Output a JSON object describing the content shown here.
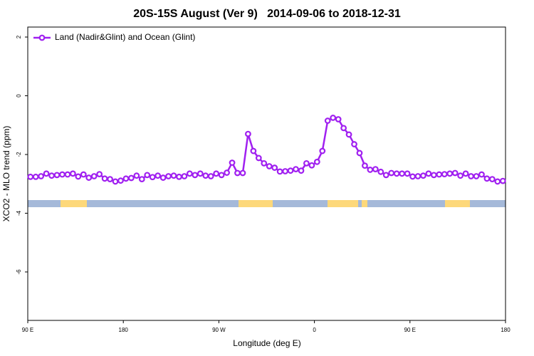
{
  "chart_data": {
    "type": "line",
    "title": "20S-15S August (Ver 9)   2014-09-06 to 2018-12-31",
    "x_label": "Longitude (deg E)",
    "y_label": "XCO2 - MLO trend (ppm)",
    "xlim": [
      90,
      540
    ],
    "ylim": [
      -7.65,
      2.34
    ],
    "xticks": [
      {
        "value": 90,
        "label": "90 E"
      },
      {
        "value": 180,
        "label": "180"
      },
      {
        "value": 270,
        "label": "90 W"
      },
      {
        "value": 360,
        "label": "0"
      },
      {
        "value": 450,
        "label": "90 E"
      },
      {
        "value": 540,
        "label": "180"
      }
    ],
    "yticks": [
      2,
      0,
      -2,
      -4,
      -6
    ],
    "grid": false,
    "legend_position": "top-left",
    "x": [
      92.5,
      97.5,
      102.5,
      107.5,
      112.5,
      117.5,
      122.5,
      127.5,
      132.5,
      137.5,
      142.5,
      147.5,
      152.5,
      157.5,
      162.5,
      167.5,
      172.5,
      177.5,
      182.5,
      187.5,
      192.5,
      197.5,
      202.5,
      207.5,
      212.5,
      217.5,
      222.5,
      227.5,
      232.5,
      237.5,
      242.5,
      247.5,
      252.5,
      257.5,
      262.5,
      267.5,
      272.5,
      277.5,
      282.5,
      287.5,
      292.5,
      297.5,
      302.5,
      307.5,
      312.5,
      317.5,
      322.5,
      327.5,
      332.5,
      337.5,
      342.5,
      347.5,
      352.5,
      357.5,
      362.5,
      367.5,
      372.5,
      377.5,
      382.5,
      387.5,
      392.5,
      397.5,
      402.5,
      407.5,
      412.5,
      417.5,
      422.5,
      427.5,
      432.5,
      437.5,
      442.5,
      447.5,
      452.5,
      457.5,
      462.5,
      467.5,
      472.5,
      477.5,
      482.5,
      487.5,
      492.5,
      497.5,
      502.5,
      507.5,
      512.5,
      517.5,
      522.5,
      527.5,
      532.5,
      537.5
    ],
    "series": [
      {
        "name": "Land (Nadir&Glint) and Ocean (Glint)",
        "color": "#a020f0",
        "values": [
          -2.76,
          -2.76,
          -2.74,
          -2.65,
          -2.72,
          -2.7,
          -2.68,
          -2.68,
          -2.65,
          -2.75,
          -2.68,
          -2.79,
          -2.74,
          -2.67,
          -2.82,
          -2.84,
          -2.92,
          -2.89,
          -2.82,
          -2.8,
          -2.72,
          -2.84,
          -2.7,
          -2.77,
          -2.72,
          -2.79,
          -2.74,
          -2.72,
          -2.76,
          -2.74,
          -2.65,
          -2.7,
          -2.65,
          -2.72,
          -2.74,
          -2.65,
          -2.7,
          -2.62,
          -2.28,
          -2.63,
          -2.63,
          -1.3,
          -1.88,
          -2.12,
          -2.3,
          -2.4,
          -2.45,
          -2.58,
          -2.57,
          -2.55,
          -2.5,
          -2.55,
          -2.3,
          -2.37,
          -2.25,
          -1.88,
          -0.85,
          -0.75,
          -0.8,
          -1.1,
          -1.32,
          -1.65,
          -1.95,
          -2.38,
          -2.52,
          -2.5,
          -2.59,
          -2.7,
          -2.63,
          -2.65,
          -2.65,
          -2.65,
          -2.75,
          -2.74,
          -2.72,
          -2.65,
          -2.7,
          -2.68,
          -2.67,
          -2.65,
          -2.63,
          -2.72,
          -2.65,
          -2.74,
          -2.74,
          -2.68,
          -2.82,
          -2.84,
          -2.92,
          -2.9
        ]
      }
    ]
  }
}
